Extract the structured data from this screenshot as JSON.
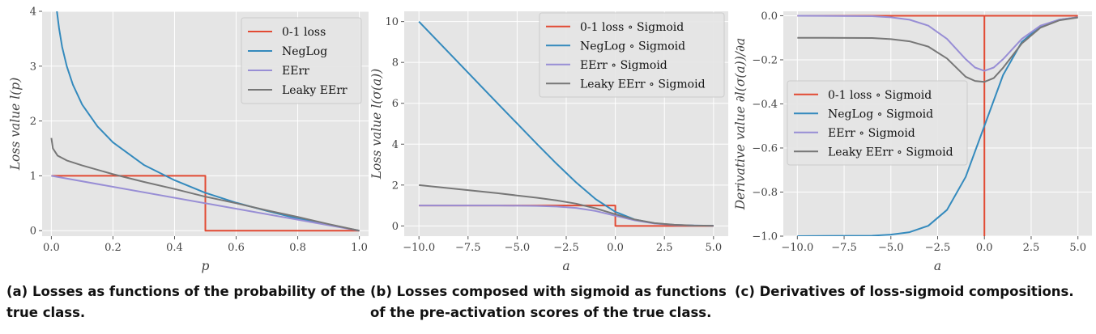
{
  "captions": {
    "a": "(a) Losses as functions of the probability of the true class.",
    "b": "(b) Losses composed with sigmoid as functions of the pre-activation scores of the true class.",
    "c": "(c) Derivatives of loss-sigmoid compositions."
  },
  "colors": {
    "red": "#E24A33",
    "blue": "#348ABD",
    "purple": "#988ED5",
    "gray": "#777777",
    "plot_bg": "#E5E5E5",
    "grid": "#ffffff"
  },
  "chart_data": [
    {
      "type": "line",
      "xlabel": "p",
      "ylabel": "Loss value l(p)",
      "xlim": [
        -0.03,
        1.03
      ],
      "ylim": [
        -0.1,
        4.0
      ],
      "xticks": [
        0.0,
        0.2,
        0.4,
        0.6,
        0.8,
        1.0
      ],
      "xtick_labels": [
        "0.0",
        "0.2",
        "0.4",
        "0.6",
        "0.8",
        "1.0"
      ],
      "yticks": [
        0,
        1,
        2,
        3,
        4
      ],
      "ytick_labels": [
        "0",
        "1",
        "2",
        "3",
        "4"
      ],
      "grid": true,
      "legend_position": "top-right",
      "series": [
        {
          "name": "0-1 loss",
          "color": "red",
          "x": [
            0.0,
            0.5,
            0.5,
            1.0
          ],
          "y": [
            1,
            1,
            0,
            0
          ]
        },
        {
          "name": "NegLog",
          "color": "blue",
          "x": [
            0.018,
            0.025,
            0.035,
            0.05,
            0.07,
            0.1,
            0.15,
            0.2,
            0.3,
            0.4,
            0.5,
            0.6,
            0.7,
            0.8,
            0.9,
            1.0
          ],
          "y": [
            4.0,
            3.69,
            3.35,
            3.0,
            2.66,
            2.3,
            1.9,
            1.61,
            1.2,
            0.92,
            0.69,
            0.51,
            0.36,
            0.22,
            0.11,
            0.0
          ]
        },
        {
          "name": "EErr",
          "color": "purple",
          "x": [
            0.0,
            1.0
          ],
          "y": [
            1.0,
            0.0
          ]
        },
        {
          "name": "Leaky EErr",
          "color": "gray",
          "x": [
            0.0,
            0.005,
            0.02,
            0.05,
            0.1,
            0.2,
            0.3,
            0.4,
            0.5,
            0.6,
            0.7,
            0.8,
            0.9,
            1.0
          ],
          "y": [
            1.69,
            1.5,
            1.37,
            1.28,
            1.19,
            1.03,
            0.89,
            0.76,
            0.62,
            0.5,
            0.37,
            0.25,
            0.12,
            0.0
          ]
        }
      ]
    },
    {
      "type": "line",
      "xlabel": "a",
      "ylabel": "Loss value l(σ(a))",
      "xlim": [
        -10.75,
        5.75
      ],
      "ylim": [
        -0.5,
        10.5
      ],
      "xticks": [
        -10.0,
        -7.5,
        -5.0,
        -2.5,
        0.0,
        2.5,
        5.0
      ],
      "xtick_labels": [
        "−10.0",
        "−7.5",
        "−5.0",
        "−2.5",
        "0.0",
        "2.5",
        "5.0"
      ],
      "yticks": [
        0,
        2,
        4,
        6,
        8,
        10
      ],
      "ytick_labels": [
        "0",
        "2",
        "4",
        "6",
        "8",
        "10"
      ],
      "grid": true,
      "legend_position": "top-right",
      "series": [
        {
          "name": "0-1 loss ∘ Sigmoid",
          "color": "red",
          "x": [
            -10,
            0,
            0,
            5
          ],
          "y": [
            1,
            1,
            0,
            0
          ]
        },
        {
          "name": "NegLog ∘ Sigmoid",
          "color": "blue",
          "x": [
            -10,
            -8,
            -6,
            -4,
            -3,
            -2,
            -1,
            0,
            1,
            2,
            3,
            4,
            5
          ],
          "y": [
            10.0,
            8.0,
            6.0,
            4.02,
            3.05,
            2.13,
            1.31,
            0.69,
            0.31,
            0.13,
            0.05,
            0.02,
            0.01
          ]
        },
        {
          "name": "EErr ∘ Sigmoid",
          "color": "purple",
          "x": [
            -10,
            -6,
            -4,
            -3,
            -2,
            -1,
            0,
            1,
            2,
            3,
            4,
            5
          ],
          "y": [
            1.0,
            1.0,
            0.98,
            0.95,
            0.88,
            0.73,
            0.5,
            0.27,
            0.12,
            0.05,
            0.02,
            0.01
          ]
        },
        {
          "name": "Leaky EErr ∘ Sigmoid",
          "color": "gray",
          "x": [
            -10,
            -8,
            -6,
            -4,
            -3,
            -2,
            -1,
            0,
            1,
            2,
            3,
            4,
            5
          ],
          "y": [
            2.0,
            1.8,
            1.6,
            1.38,
            1.25,
            1.09,
            0.86,
            0.57,
            0.31,
            0.14,
            0.06,
            0.02,
            0.01
          ]
        }
      ]
    },
    {
      "type": "line",
      "xlabel": "a",
      "ylabel": "Derivative value ∂l(σ(a))/∂a",
      "xlim": [
        -10.75,
        5.75
      ],
      "ylim": [
        -1.0,
        0.02
      ],
      "xticks": [
        -10.0,
        -7.5,
        -5.0,
        -2.5,
        0.0,
        2.5,
        5.0
      ],
      "xtick_labels": [
        "−10.0",
        "−7.5",
        "−5.0",
        "−2.5",
        "0.0",
        "2.5",
        "5.0"
      ],
      "yticks": [
        0.0,
        -0.2,
        -0.4,
        -0.6,
        -0.8,
        -1.0
      ],
      "ytick_labels": [
        "0.0",
        "−0.2",
        "−0.4",
        "−0.6",
        "−0.8",
        "−1.0"
      ],
      "grid": true,
      "legend_position": "center-left",
      "series": [
        {
          "name": "0-1 loss ∘ Sigmoid",
          "color": "red",
          "x": [
            -10,
            0,
            0,
            0,
            0,
            5
          ],
          "y": [
            0,
            0,
            0,
            -1.0,
            0,
            0
          ]
        },
        {
          "name": "NegLog ∘ Sigmoid",
          "color": "blue",
          "x": [
            -10,
            -6,
            -5,
            -4,
            -3,
            -2,
            -1,
            0,
            1,
            2,
            3,
            4,
            5
          ],
          "y": [
            -1.0,
            -0.998,
            -0.993,
            -0.982,
            -0.953,
            -0.881,
            -0.731,
            -0.5,
            -0.269,
            -0.119,
            -0.047,
            -0.018,
            -0.007
          ]
        },
        {
          "name": "EErr ∘ Sigmoid",
          "color": "purple",
          "x": [
            -10,
            -6,
            -5,
            -4,
            -3,
            -2,
            -1,
            -0.5,
            0,
            0.5,
            1,
            2,
            3,
            4,
            5
          ],
          "y": [
            0.0,
            -0.002,
            -0.007,
            -0.018,
            -0.045,
            -0.105,
            -0.197,
            -0.235,
            -0.25,
            -0.235,
            -0.197,
            -0.105,
            -0.045,
            -0.018,
            -0.007
          ]
        },
        {
          "name": "Leaky EErr ∘ Sigmoid",
          "color": "gray",
          "x": [
            -10,
            -6,
            -5,
            -4,
            -3,
            -2,
            -1,
            -0.5,
            0,
            0.5,
            1,
            2,
            3,
            4,
            5
          ],
          "y": [
            -0.1,
            -0.101,
            -0.106,
            -0.116,
            -0.14,
            -0.194,
            -0.277,
            -0.296,
            -0.3,
            -0.283,
            -0.236,
            -0.126,
            -0.054,
            -0.021,
            -0.008
          ]
        }
      ]
    }
  ]
}
